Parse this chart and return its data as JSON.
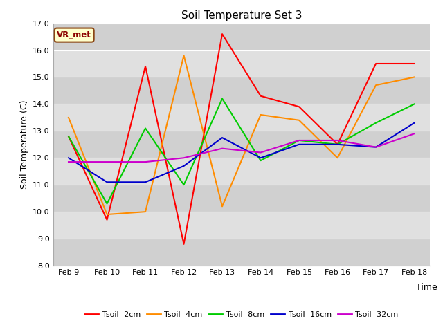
{
  "title": "Soil Temperature Set 3",
  "xlabel": "Time",
  "ylabel": "Soil Temperature (C)",
  "ylim": [
    8.0,
    17.0
  ],
  "yticks": [
    8.0,
    9.0,
    10.0,
    11.0,
    12.0,
    13.0,
    14.0,
    15.0,
    16.0,
    17.0
  ],
  "x_labels": [
    "Feb 9",
    "Feb 10",
    "Feb 11",
    "Feb 12",
    "Feb 13",
    "Feb 14",
    "Feb 15",
    "Feb 16",
    "Feb 17",
    "Feb 18"
  ],
  "x_values": [
    0,
    1,
    2,
    3,
    4,
    5,
    6,
    7,
    8,
    9
  ],
  "annotation_text": "VR_met",
  "annotation_bg": "#ffffcc",
  "annotation_border": "#8B4513",
  "series": [
    {
      "label": "Tsoil -2cm",
      "color": "#ff0000",
      "values": [
        12.8,
        9.7,
        15.4,
        8.8,
        16.6,
        14.3,
        13.9,
        12.5,
        15.5,
        15.5
      ]
    },
    {
      "label": "Tsoil -4cm",
      "color": "#ff8c00",
      "values": [
        13.5,
        9.9,
        10.0,
        15.8,
        10.2,
        13.6,
        13.4,
        12.0,
        14.7,
        15.0
      ]
    },
    {
      "label": "Tsoil -8cm",
      "color": "#00cc00",
      "values": [
        12.8,
        10.3,
        13.1,
        11.0,
        14.2,
        11.9,
        12.65,
        12.5,
        13.3,
        14.0
      ]
    },
    {
      "label": "Tsoil -16cm",
      "color": "#0000cc",
      "values": [
        12.0,
        11.1,
        11.1,
        11.7,
        12.75,
        12.0,
        12.5,
        12.5,
        12.4,
        13.3
      ]
    },
    {
      "label": "Tsoil -32cm",
      "color": "#cc00cc",
      "values": [
        11.85,
        11.85,
        11.85,
        12.0,
        12.35,
        12.2,
        12.65,
        12.65,
        12.4,
        12.9
      ]
    }
  ],
  "fig_bg_color": "#ffffff",
  "plot_bg_color": "#d8d8d8",
  "grid_color": "#ffffff",
  "band_colors": [
    "#d0d0d0",
    "#e0e0e0"
  ],
  "line_width": 1.5,
  "title_fontsize": 11,
  "tick_fontsize": 8,
  "label_fontsize": 9,
  "legend_fontsize": 8
}
